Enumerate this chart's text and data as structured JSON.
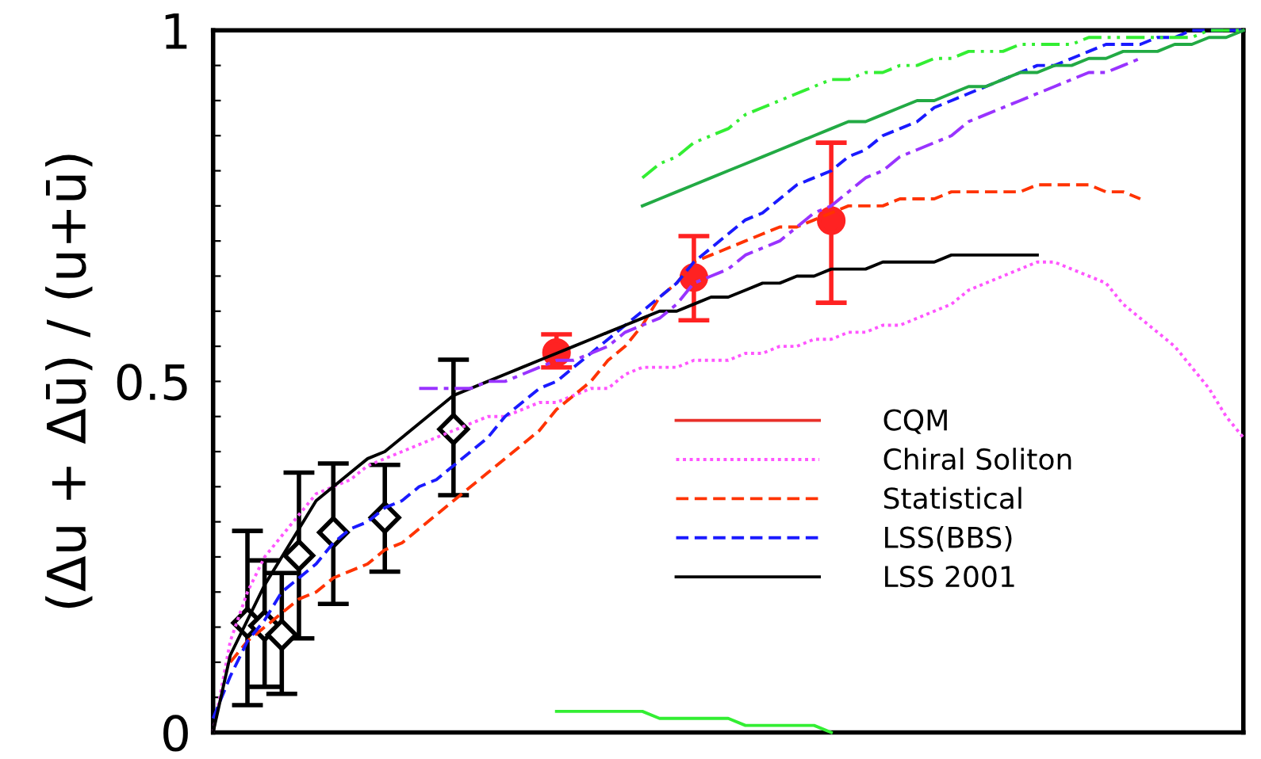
{
  "chart_data": {
    "type": "line",
    "ylabel": "(Δu + Δū) / (u+ū)",
    "ylim": [
      0,
      1
    ],
    "categories": [
      null,
      null,
      null,
      null,
      null,
      null,
      null,
      null,
      null,
      null,
      null,
      null,
      null,
      null,
      null,
      null,
      null,
      null,
      null,
      null,
      null,
      null,
      null,
      null,
      null,
      null,
      null,
      null,
      null,
      null,
      null,
      null,
      null,
      null,
      null,
      null,
      null,
      null,
      null,
      null,
      null,
      null,
      null,
      null,
      null,
      null,
      null,
      null,
      null,
      null,
      null,
      null,
      null,
      null,
      null,
      null,
      null,
      null,
      null,
      null,
      null
    ],
    "yticks": [
      0,
      {
        "value": 0.05,
        "label": null
      },
      {
        "value": 0.1,
        "label": null
      },
      {
        "value": 0.15,
        "label": null
      },
      {
        "value": 0.2,
        "label": null
      },
      {
        "value": 0.25,
        "label": null
      },
      {
        "value": 0.3,
        "label": null
      },
      {
        "value": 0.35,
        "label": null
      },
      {
        "value": 0.4,
        "label": null
      },
      {
        "value": 0.45,
        "label": null
      },
      0.5,
      {
        "value": 0.55,
        "label": null
      },
      {
        "value": 0.6,
        "label": null
      },
      {
        "value": 0.65,
        "label": null
      },
      {
        "value": 0.7,
        "label": null
      },
      {
        "value": 0.75,
        "label": null
      },
      {
        "value": 0.8,
        "label": null
      },
      {
        "value": 0.85,
        "label": null
      },
      {
        "value": 0.9,
        "label": null
      },
      {
        "value": 0.95,
        "label": null
      },
      1
    ],
    "tick_labels": "y",
    "grid": false,
    "legend": "center right",
    "series": [
      {
        "name": "CQM",
        "color": "#e8302a",
        "line_style": "solid",
        "values": [
          null,
          null,
          null,
          null,
          null,
          null,
          null,
          null,
          null,
          null,
          null,
          null,
          null,
          null,
          null,
          null,
          null,
          null,
          null,
          null,
          null,
          null,
          null,
          null,
          null,
          null,
          null,
          null,
          null,
          null,
          null,
          null,
          null,
          null,
          null,
          null,
          null,
          null,
          null,
          null,
          null,
          null,
          null,
          null,
          null,
          null,
          null,
          null,
          null,
          null,
          null,
          null,
          null,
          null,
          null,
          null,
          null,
          null,
          null,
          null,
          null
        ]
      },
      {
        "name": "Chiral Soliton",
        "color": "#ff55ff",
        "line_style": "dotted",
        "values": [
          0,
          0.13,
          0.2,
          0.25,
          0.28,
          0.31,
          0.34,
          0.35,
          0.36,
          0.38,
          0.39,
          0.4,
          0.41,
          0.42,
          0.43,
          0.44,
          0.45,
          0.45,
          0.46,
          0.47,
          0.47,
          0.48,
          0.49,
          0.49,
          0.51,
          0.52,
          0.52,
          0.52,
          0.53,
          0.53,
          0.53,
          0.54,
          0.54,
          0.55,
          0.55,
          0.56,
          0.56,
          0.57,
          0.57,
          0.58,
          0.58,
          0.59,
          0.6,
          0.61,
          0.63,
          0.64,
          0.65,
          0.66,
          0.67,
          0.67,
          0.66,
          0.65,
          0.64,
          0.61,
          0.59,
          0.57,
          0.55,
          0.52,
          0.49,
          0.45,
          0.42
        ]
      },
      {
        "name": "Statistical",
        "color": "#ff3300",
        "line_style": "dashed",
        "values": [
          null,
          0.1,
          0.13,
          0.15,
          0.17,
          0.19,
          0.2,
          0.22,
          0.23,
          0.24,
          0.26,
          0.27,
          0.29,
          0.31,
          0.33,
          0.35,
          0.37,
          0.39,
          0.41,
          0.43,
          0.46,
          0.48,
          0.5,
          0.53,
          0.55,
          0.58,
          0.62,
          0.64,
          0.67,
          0.68,
          0.69,
          0.7,
          0.71,
          0.72,
          0.72,
          0.73,
          0.74,
          0.75,
          0.75,
          0.75,
          0.76,
          0.76,
          0.76,
          0.77,
          0.77,
          0.77,
          0.77,
          0.77,
          0.78,
          0.78,
          0.78,
          0.78,
          0.77,
          0.77,
          0.76,
          null,
          null,
          null,
          null,
          null,
          null
        ]
      },
      {
        "name": "LSS(BBS)",
        "color": "#1a1aff",
        "line_style": "dashed",
        "values": [
          0.02,
          0.08,
          0.13,
          0.16,
          0.2,
          0.22,
          0.24,
          0.27,
          0.29,
          0.3,
          0.32,
          0.33,
          0.35,
          0.36,
          0.38,
          0.4,
          0.42,
          0.45,
          0.47,
          0.49,
          0.5,
          0.52,
          0.54,
          0.56,
          0.58,
          0.6,
          0.62,
          0.64,
          0.67,
          0.69,
          0.71,
          0.73,
          0.74,
          0.76,
          0.78,
          0.79,
          0.8,
          0.82,
          0.83,
          0.85,
          0.86,
          0.87,
          0.89,
          0.9,
          0.91,
          0.92,
          0.93,
          0.94,
          0.95,
          0.95,
          0.96,
          0.97,
          0.98,
          0.98,
          0.98,
          0.99,
          0.99,
          1.0,
          1.0,
          1.0,
          1.0
        ]
      },
      {
        "name": "LSS 2001",
        "color": "#000000",
        "line_style": "solid",
        "values": [
          0,
          0.11,
          0.16,
          0.21,
          0.25,
          0.29,
          0.33,
          0.35,
          0.37,
          0.39,
          0.4,
          0.42,
          0.44,
          0.46,
          0.48,
          0.49,
          0.5,
          0.51,
          0.52,
          0.53,
          0.54,
          0.55,
          0.56,
          0.57,
          0.58,
          0.59,
          0.6,
          0.6,
          0.61,
          0.62,
          0.62,
          0.63,
          0.64,
          0.64,
          0.65,
          0.65,
          0.66,
          0.66,
          0.66,
          0.67,
          0.67,
          0.67,
          0.67,
          0.68,
          0.68,
          0.68,
          0.68,
          0.68,
          0.68,
          null,
          null,
          null,
          null,
          null,
          null,
          null,
          null,
          null,
          null,
          null,
          null
        ]
      },
      {
        "color": "#22aa44",
        "line_style": "solid",
        "values": [
          null,
          null,
          null,
          null,
          null,
          null,
          null,
          null,
          null,
          null,
          null,
          null,
          null,
          null,
          null,
          null,
          null,
          null,
          null,
          null,
          null,
          null,
          null,
          null,
          null,
          0.75,
          0.76,
          0.77,
          0.78,
          0.79,
          0.8,
          0.81,
          0.82,
          0.83,
          0.84,
          0.85,
          0.86,
          0.87,
          0.87,
          0.88,
          0.89,
          0.9,
          0.9,
          0.91,
          0.92,
          0.92,
          0.93,
          0.94,
          0.94,
          0.95,
          0.95,
          0.96,
          0.96,
          0.97,
          0.97,
          0.97,
          0.98,
          0.98,
          0.99,
          0.99,
          1.0
        ]
      },
      {
        "color": "#33ee33",
        "line_style": "dashdotdot",
        "values": [
          null,
          null,
          null,
          null,
          null,
          null,
          null,
          null,
          null,
          null,
          null,
          null,
          null,
          null,
          null,
          null,
          null,
          null,
          null,
          null,
          null,
          null,
          null,
          null,
          null,
          0.79,
          0.81,
          0.82,
          0.84,
          0.85,
          0.86,
          0.88,
          0.89,
          0.9,
          0.91,
          0.92,
          0.93,
          0.93,
          0.94,
          0.94,
          0.95,
          0.95,
          0.96,
          0.96,
          0.97,
          0.97,
          0.97,
          0.98,
          0.98,
          0.98,
          0.98,
          0.99,
          0.99,
          0.99,
          0.99,
          0.99,
          0.99,
          0.99,
          1.0,
          1.0,
          1.0
        ]
      },
      {
        "color": "#9933ff",
        "line_style": "dashdot",
        "values": [
          null,
          null,
          null,
          null,
          null,
          null,
          null,
          null,
          null,
          null,
          null,
          null,
          0.49,
          0.49,
          0.49,
          0.49,
          0.5,
          0.5,
          0.51,
          0.52,
          0.53,
          0.53,
          0.54,
          0.55,
          0.57,
          0.58,
          0.59,
          0.61,
          0.64,
          0.65,
          0.66,
          0.68,
          0.69,
          0.7,
          0.72,
          0.74,
          0.75,
          0.77,
          0.79,
          0.8,
          0.82,
          0.83,
          0.84,
          0.85,
          0.87,
          0.88,
          0.89,
          0.9,
          0.91,
          0.92,
          0.93,
          0.94,
          0.94,
          0.95,
          0.96,
          null,
          null,
          null,
          null,
          null,
          null
        ]
      },
      {
        "color": "#33ee33",
        "line_style": "solid",
        "values": [
          null,
          null,
          null,
          null,
          null,
          null,
          null,
          null,
          null,
          null,
          null,
          null,
          null,
          null,
          null,
          null,
          null,
          null,
          null,
          null,
          0.03,
          0.03,
          0.03,
          0.03,
          0.03,
          0.03,
          0.02,
          0.02,
          0.02,
          0.02,
          0.02,
          0.01,
          0.01,
          0.01,
          0.01,
          0.01,
          0.0,
          null,
          null,
          null,
          null,
          null,
          null,
          null,
          null,
          null,
          null,
          null,
          null,
          null,
          null,
          null,
          null,
          null,
          null,
          null,
          null,
          null,
          null,
          null,
          null
        ]
      },
      {
        "type": "scatter",
        "color": "#000000",
        "marker": "diamond",
        "values": [
          null,
          null,
          0.156,
          0.152,
          0.139,
          0.252,
          null,
          0.285,
          null,
          null,
          0.306,
          null,
          null,
          null,
          0.432,
          null,
          null,
          null,
          null,
          null,
          null,
          null,
          null,
          null,
          null,
          null,
          null,
          null,
          null,
          null,
          null,
          null,
          null,
          null,
          null,
          null,
          null,
          null,
          null,
          null,
          null,
          null,
          null,
          null,
          null,
          null,
          null,
          null,
          null,
          null,
          null,
          null,
          null,
          null,
          null,
          null,
          null,
          null,
          null,
          null,
          null
        ],
        "errors": [
          null,
          null,
          [
            0.039,
            0.287
          ],
          [
            0.065,
            0.245
          ],
          [
            0.055,
            0.227
          ],
          [
            0.134,
            0.37
          ],
          null,
          [
            0.183,
            0.383
          ],
          null,
          null,
          [
            0.229,
            0.381
          ],
          null,
          null,
          null,
          [
            0.338,
            0.531
          ],
          null,
          null,
          null,
          null,
          null,
          null,
          null,
          null,
          null,
          null,
          null,
          null,
          null,
          null,
          null,
          null,
          null,
          null,
          null,
          null,
          null,
          null,
          null,
          null,
          null,
          null,
          null,
          null,
          null,
          null,
          null,
          null,
          null,
          null,
          null,
          null,
          null,
          null,
          null,
          null,
          null,
          null,
          null,
          null,
          null,
          null
        ]
      },
      {
        "type": "scatter",
        "color": "#ff2222",
        "marker": "circle",
        "values": [
          null,
          null,
          null,
          null,
          null,
          null,
          null,
          null,
          null,
          null,
          null,
          null,
          null,
          null,
          null,
          null,
          null,
          null,
          null,
          null,
          0.541,
          null,
          null,
          null,
          null,
          null,
          null,
          null,
          0.648,
          null,
          null,
          null,
          null,
          null,
          null,
          null,
          0.729,
          null,
          null,
          null,
          null,
          null,
          null,
          null,
          null,
          null,
          null,
          null,
          null,
          null,
          null,
          null,
          null,
          null,
          null,
          null,
          null,
          null,
          null,
          null,
          null
        ],
        "errors": [
          null,
          null,
          null,
          null,
          null,
          null,
          null,
          null,
          null,
          null,
          null,
          null,
          null,
          null,
          null,
          null,
          null,
          null,
          null,
          null,
          [
            0.52,
            0.567
          ],
          null,
          null,
          null,
          null,
          null,
          null,
          null,
          [
            0.587,
            0.707
          ],
          null,
          null,
          null,
          null,
          null,
          null,
          null,
          [
            0.612,
            0.84
          ],
          null,
          null,
          null,
          null,
          null,
          null,
          null,
          null,
          null,
          null,
          null,
          null,
          null,
          null,
          null,
          null,
          null,
          null,
          null,
          null,
          null,
          null,
          null,
          null
        ]
      }
    ]
  }
}
